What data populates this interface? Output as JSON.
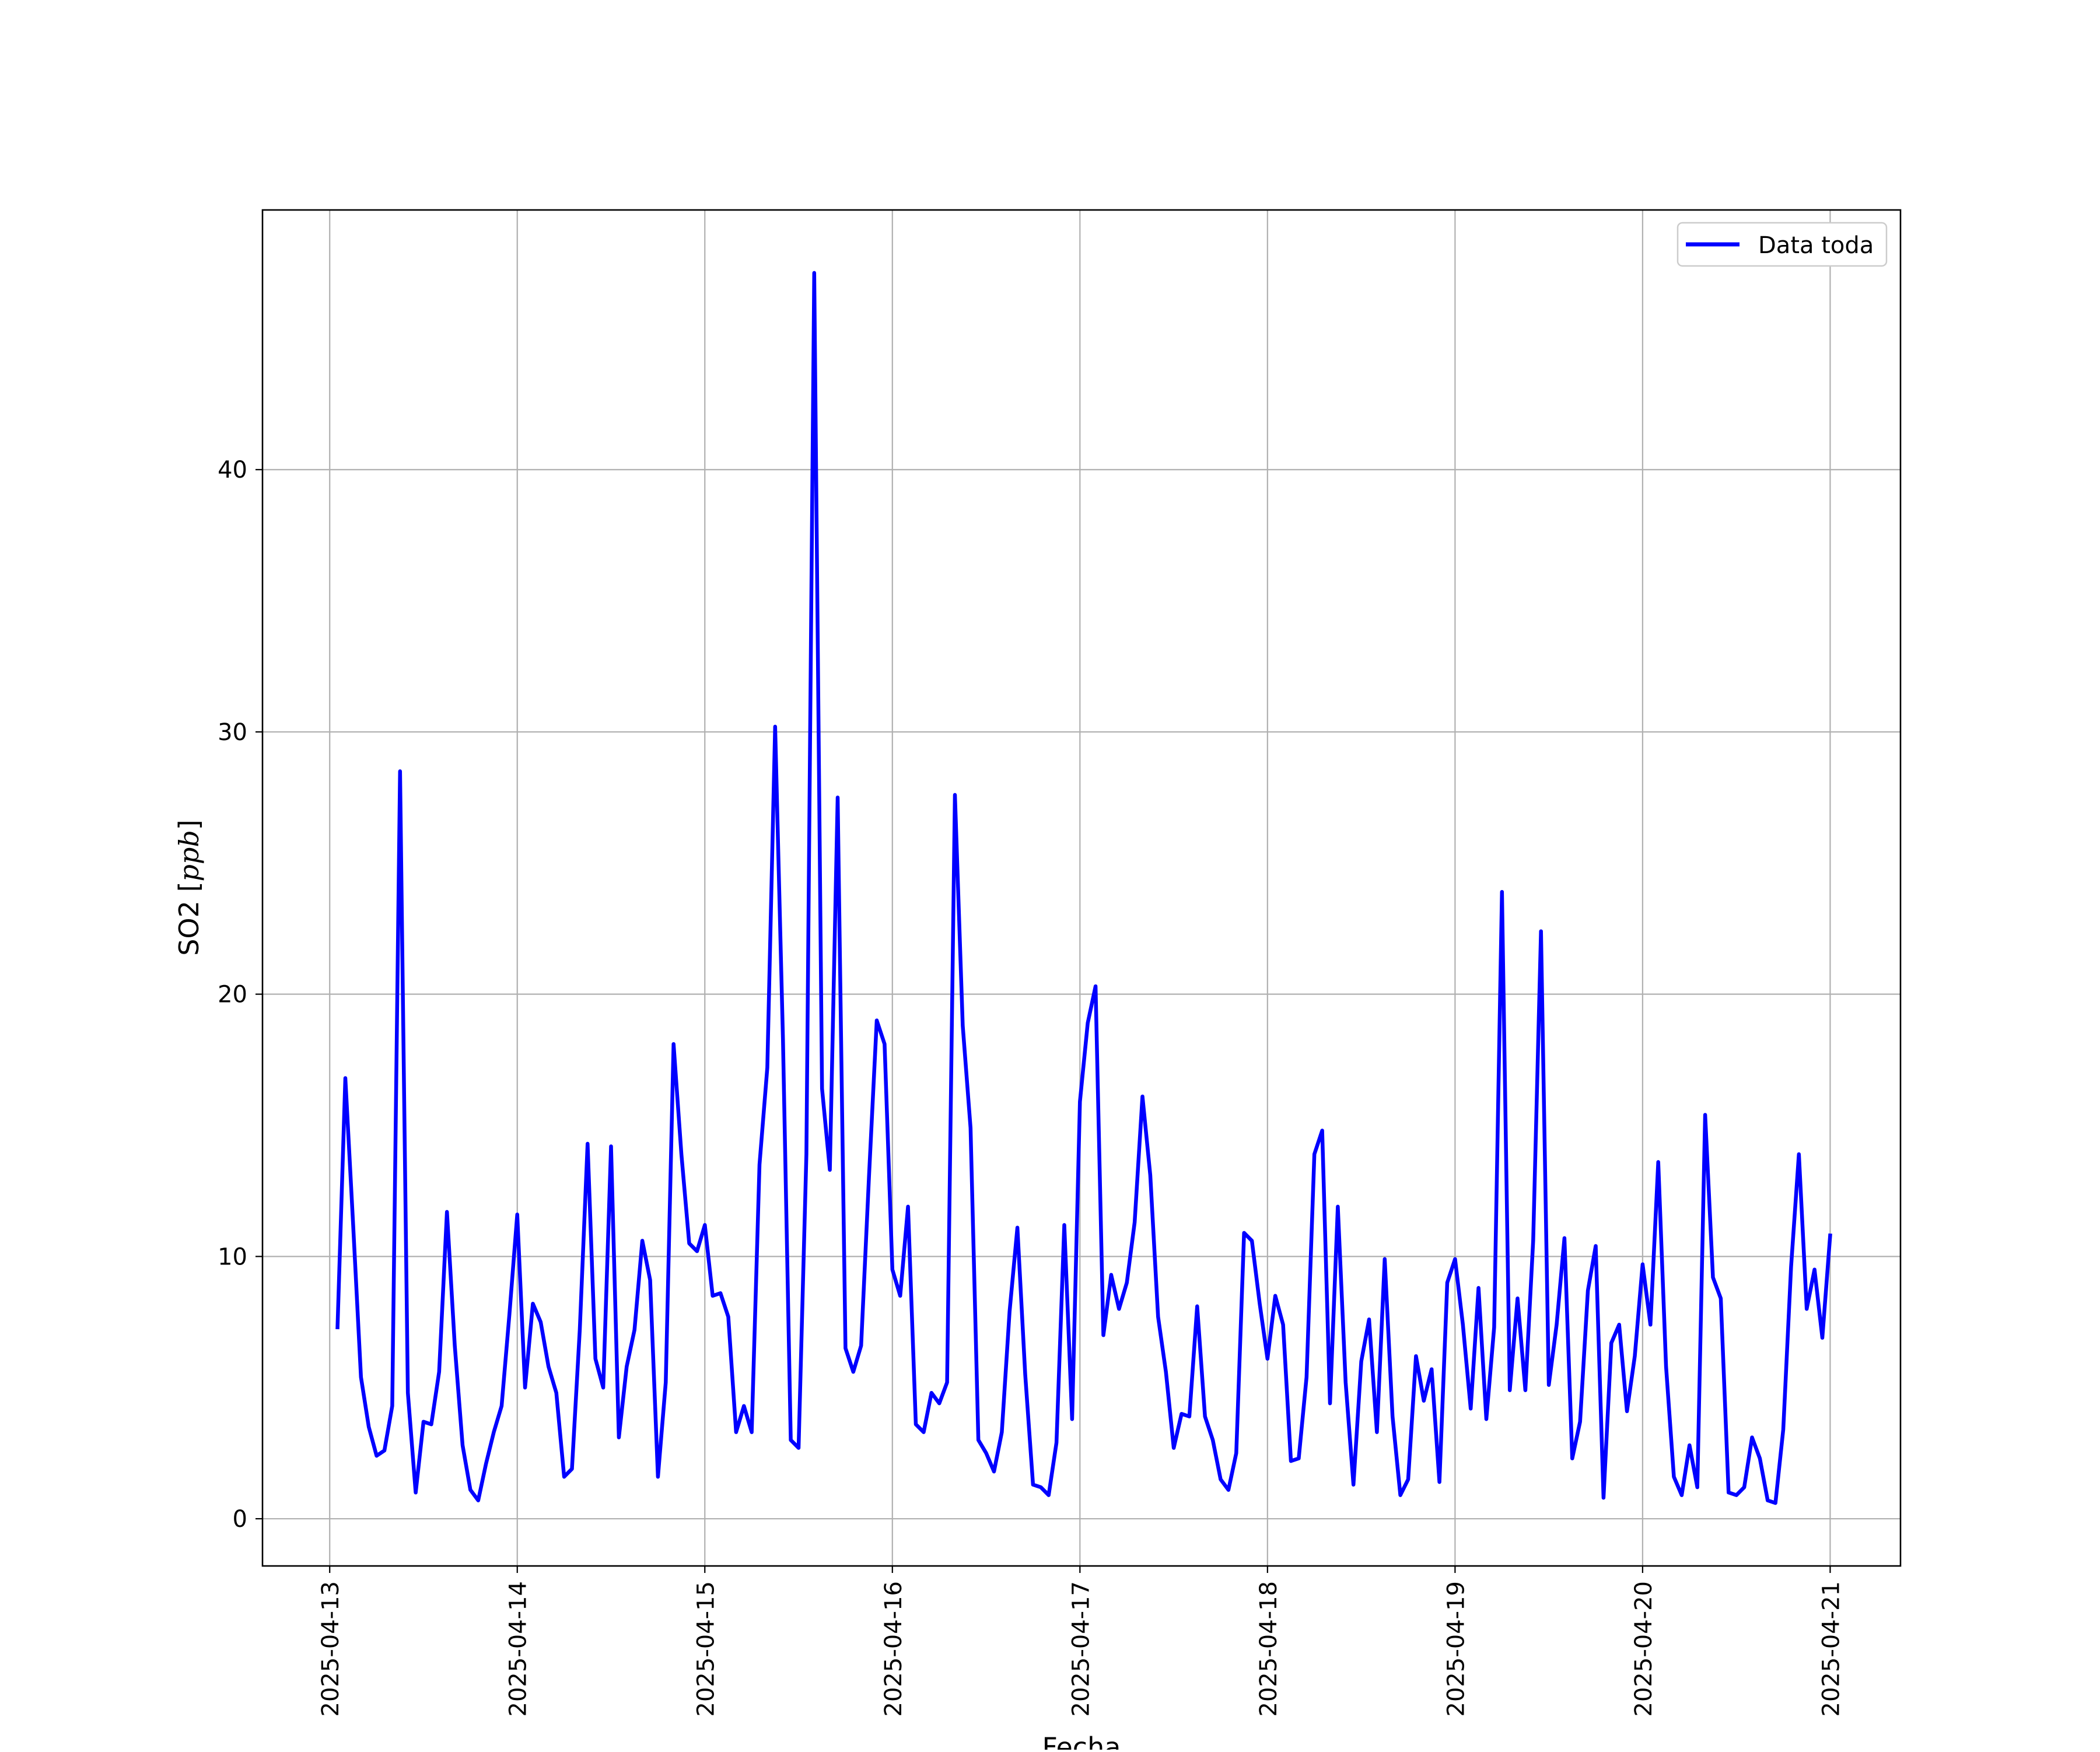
{
  "chart_data": {
    "type": "line",
    "title": "",
    "xlabel": "Fecha",
    "ylabel": "SO2 [ppb]",
    "ylabel_parts": {
      "prefix": "SO2 [",
      "unit": "ppb",
      "suffix": "]"
    },
    "xlim": [
      "2025-04-12T15:24",
      "2025-04-21T09:00"
    ],
    "ylim": [
      -1.8,
      49.9
    ],
    "grid": true,
    "legend_position": "top-right",
    "x_ticks": [
      "2025-04-13",
      "2025-04-14",
      "2025-04-15",
      "2025-04-16",
      "2025-04-17",
      "2025-04-18",
      "2025-04-19",
      "2025-04-20",
      "2025-04-21"
    ],
    "y_ticks": [
      0,
      10,
      20,
      30,
      40
    ],
    "series": [
      {
        "name": "Data toda",
        "color": "#0000ff",
        "x_start": "2025-04-13T01:00",
        "x_step_hours": 1,
        "values": [
          7.3,
          16.8,
          11.2,
          5.4,
          3.5,
          2.4,
          2.6,
          4.3,
          28.5,
          4.8,
          1.0,
          3.7,
          3.6,
          5.6,
          11.7,
          6.6,
          2.8,
          1.1,
          0.7,
          2.1,
          3.3,
          4.3,
          7.8,
          11.6,
          5.0,
          8.2,
          7.5,
          5.8,
          4.8,
          1.6,
          1.9,
          7.2,
          14.3,
          6.1,
          5.0,
          14.2,
          3.1,
          5.8,
          7.2,
          10.6,
          9.1,
          1.6,
          5.2,
          18.1,
          13.9,
          10.5,
          10.2,
          11.2,
          8.5,
          8.6,
          7.7,
          3.3,
          4.3,
          3.3,
          13.5,
          17.2,
          30.2,
          18.3,
          3.0,
          2.7,
          13.9,
          47.5,
          16.4,
          13.3,
          27.5,
          6.5,
          5.6,
          6.6,
          13.0,
          19.0,
          18.1,
          9.5,
          8.5,
          11.9,
          3.6,
          3.3,
          4.8,
          4.4,
          5.2,
          27.6,
          18.8,
          14.9,
          3.0,
          2.5,
          1.8,
          3.3,
          7.9,
          11.1,
          5.5,
          1.3,
          1.2,
          0.9,
          2.9,
          11.2,
          3.8,
          15.9,
          18.9,
          20.3,
          7.0,
          9.3,
          8.0,
          9.0,
          11.3,
          16.1,
          13.1,
          7.7,
          5.6,
          2.7,
          4.0,
          3.9,
          8.1,
          3.9,
          3.0,
          1.5,
          1.1,
          2.5,
          10.9,
          10.6,
          8.2,
          6.1,
          8.5,
          7.4,
          2.2,
          2.3,
          5.4,
          13.9,
          14.8,
          4.4,
          11.9,
          5.2,
          1.3,
          6.0,
          7.6,
          3.3,
          9.9,
          3.9,
          0.9,
          1.5,
          6.2,
          4.5,
          5.7,
          1.4,
          9.0,
          9.9,
          7.4,
          4.2,
          8.8,
          3.8,
          7.3,
          23.9,
          4.9,
          8.4,
          4.9,
          10.6,
          22.4,
          5.1,
          7.4,
          10.7,
          2.3,
          3.7,
          8.7,
          10.4,
          0.8,
          6.7,
          7.4,
          4.1,
          6.2,
          9.7,
          7.4,
          13.6,
          5.8,
          1.6,
          0.9,
          2.8,
          1.2,
          15.4,
          9.2,
          8.4,
          1.0,
          0.9,
          1.2,
          3.1,
          2.3,
          0.7,
          0.6,
          3.4,
          9.6,
          13.9,
          8.0,
          9.5,
          6.9,
          10.8
        ]
      }
    ]
  }
}
